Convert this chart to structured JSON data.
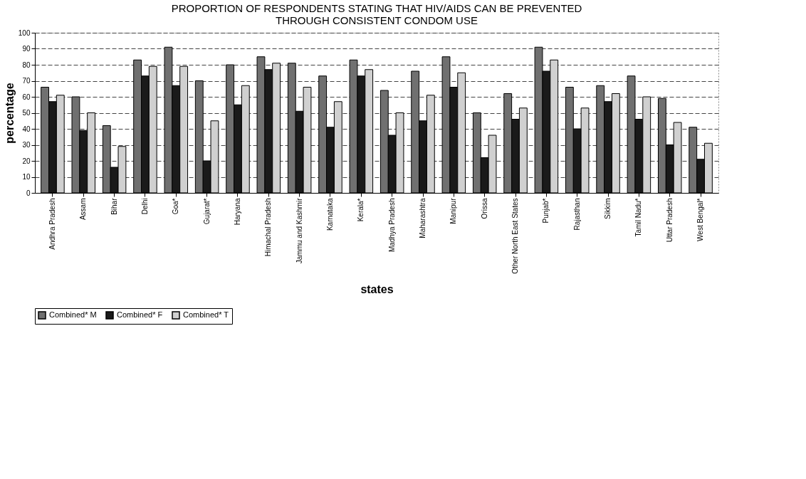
{
  "chart_data": {
    "type": "bar",
    "title": "PROPORTION OF RESPONDENTS STATING THAT HIV/AIDS CAN BE PREVENTED\nTHROUGH CONSISTENT CONDOM USE",
    "xlabel": "states",
    "ylabel": "percentage",
    "categories": [
      "Andhra Pradesh",
      "Assam",
      "Bihar",
      "Delhi",
      "Goa*",
      "Gujarat*",
      "Haryana",
      "Himachal Pradesh",
      "Jammu and Kashmir",
      "Karnataka",
      "Kerala*",
      "Madhya Pradesh",
      "Maharashtra",
      "Manipur",
      "Orissa",
      "Other North East States",
      "Punjab*",
      "Rajasthan",
      "Sikkim",
      "Tamil Nadu*",
      "Uttar Pradesh",
      "West Bengal*"
    ],
    "series": [
      {
        "name": "Combined* M",
        "color": "#707070",
        "values": [
          66,
          60,
          42,
          83,
          91,
          70,
          80,
          85,
          81,
          73,
          83,
          64,
          76,
          85,
          50,
          62,
          91,
          66,
          67,
          73,
          59,
          41
        ]
      },
      {
        "name": "Combined* F",
        "color": "#1a1a1a",
        "values": [
          57,
          39,
          16,
          73,
          67,
          20,
          55,
          77,
          51,
          41,
          73,
          36,
          45,
          66,
          22,
          46,
          76,
          40,
          57,
          46,
          30,
          21
        ]
      },
      {
        "name": "Combined* T",
        "color": "#d0d0d0",
        "values": [
          61,
          50,
          29,
          79,
          79,
          45,
          67,
          81,
          66,
          57,
          77,
          50,
          61,
          75,
          36,
          53,
          83,
          53,
          62,
          60,
          44,
          31
        ]
      }
    ],
    "ylim": [
      0,
      100
    ],
    "yticks": [
      0,
      10,
      20,
      30,
      40,
      50,
      60,
      70,
      80,
      90,
      100
    ],
    "grid": "y",
    "legend": "bottom"
  }
}
